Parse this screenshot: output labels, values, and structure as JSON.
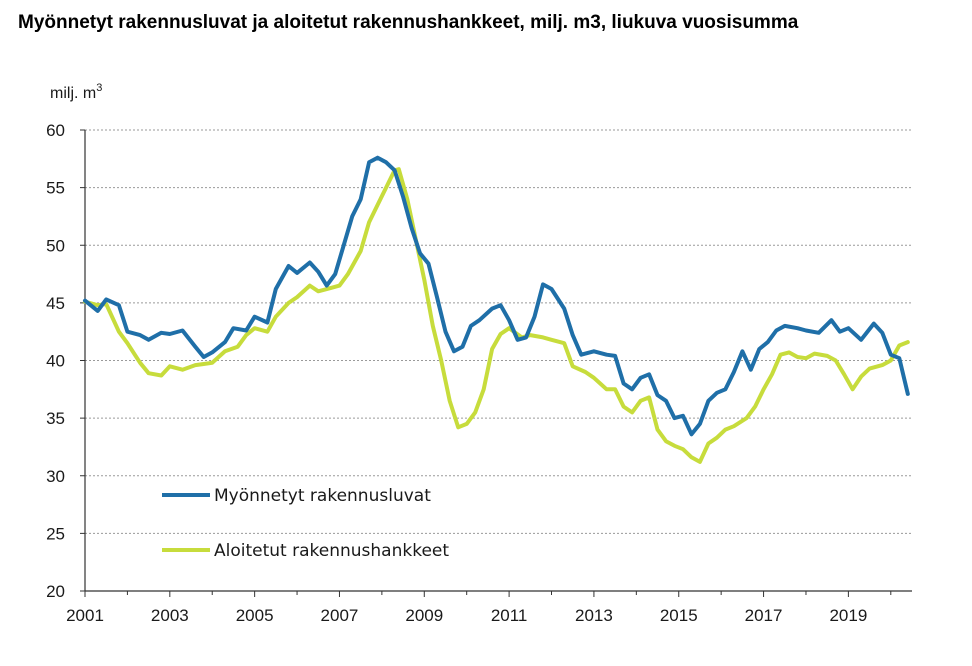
{
  "title": "Myönnetyt rakennusluvat ja aloitetut rakennushankkeet, milj. m3, liukuva vuosisumma",
  "chart_data": {
    "type": "line",
    "title": "Myönnetyt rakennusluvat ja aloitetut rakennushankkeet, milj. m3, liukuva vuosisumma",
    "ylabel": "milj. m",
    "ylabel_superscript": "3",
    "xlim": [
      2001,
      2020.5
    ],
    "ylim": [
      20,
      60
    ],
    "yticks": [
      20,
      25,
      30,
      35,
      40,
      45,
      50,
      55,
      60
    ],
    "xticks": [
      2001,
      2003,
      2005,
      2007,
      2009,
      2011,
      2013,
      2015,
      2017,
      2019
    ],
    "grid": true,
    "legend_position": "bottom-left",
    "series": [
      {
        "name": "Myönnetyt rakennusluvat",
        "color": "#1f6fa8",
        "points": [
          [
            2001.0,
            45.2
          ],
          [
            2001.3,
            44.3
          ],
          [
            2001.5,
            45.3
          ],
          [
            2001.8,
            44.8
          ],
          [
            2002.0,
            42.5
          ],
          [
            2002.3,
            42.2
          ],
          [
            2002.5,
            41.8
          ],
          [
            2002.8,
            42.4
          ],
          [
            2003.0,
            42.3
          ],
          [
            2003.3,
            42.6
          ],
          [
            2003.6,
            41.2
          ],
          [
            2003.8,
            40.3
          ],
          [
            2004.0,
            40.7
          ],
          [
            2004.3,
            41.6
          ],
          [
            2004.5,
            42.8
          ],
          [
            2004.8,
            42.6
          ],
          [
            2005.0,
            43.8
          ],
          [
            2005.3,
            43.3
          ],
          [
            2005.5,
            46.2
          ],
          [
            2005.8,
            48.2
          ],
          [
            2006.0,
            47.6
          ],
          [
            2006.3,
            48.5
          ],
          [
            2006.5,
            47.7
          ],
          [
            2006.7,
            46.5
          ],
          [
            2006.9,
            47.5
          ],
          [
            2007.1,
            50.0
          ],
          [
            2007.3,
            52.5
          ],
          [
            2007.5,
            54.0
          ],
          [
            2007.7,
            57.2
          ],
          [
            2007.9,
            57.6
          ],
          [
            2008.1,
            57.2
          ],
          [
            2008.3,
            56.5
          ],
          [
            2008.5,
            54.2
          ],
          [
            2008.7,
            51.5
          ],
          [
            2008.9,
            49.3
          ],
          [
            2009.1,
            48.4
          ],
          [
            2009.3,
            45.5
          ],
          [
            2009.5,
            42.5
          ],
          [
            2009.7,
            40.8
          ],
          [
            2009.9,
            41.2
          ],
          [
            2010.1,
            43.0
          ],
          [
            2010.3,
            43.5
          ],
          [
            2010.6,
            44.5
          ],
          [
            2010.8,
            44.8
          ],
          [
            2011.0,
            43.5
          ],
          [
            2011.2,
            41.8
          ],
          [
            2011.4,
            42.0
          ],
          [
            2011.6,
            43.8
          ],
          [
            2011.8,
            46.6
          ],
          [
            2012.0,
            46.2
          ],
          [
            2012.3,
            44.5
          ],
          [
            2012.5,
            42.2
          ],
          [
            2012.7,
            40.5
          ],
          [
            2013.0,
            40.8
          ],
          [
            2013.3,
            40.5
          ],
          [
            2013.5,
            40.4
          ],
          [
            2013.7,
            38.0
          ],
          [
            2013.9,
            37.5
          ],
          [
            2014.1,
            38.5
          ],
          [
            2014.3,
            38.8
          ],
          [
            2014.5,
            37.0
          ],
          [
            2014.7,
            36.5
          ],
          [
            2014.9,
            35.0
          ],
          [
            2015.1,
            35.2
          ],
          [
            2015.3,
            33.6
          ],
          [
            2015.5,
            34.5
          ],
          [
            2015.7,
            36.5
          ],
          [
            2015.9,
            37.2
          ],
          [
            2016.1,
            37.5
          ],
          [
            2016.3,
            39.0
          ],
          [
            2016.5,
            40.8
          ],
          [
            2016.7,
            39.2
          ],
          [
            2016.9,
            41.0
          ],
          [
            2017.1,
            41.6
          ],
          [
            2017.3,
            42.6
          ],
          [
            2017.5,
            43.0
          ],
          [
            2017.8,
            42.8
          ],
          [
            2018.0,
            42.6
          ],
          [
            2018.3,
            42.4
          ],
          [
            2018.6,
            43.5
          ],
          [
            2018.8,
            42.5
          ],
          [
            2019.0,
            42.8
          ],
          [
            2019.3,
            41.8
          ],
          [
            2019.6,
            43.2
          ],
          [
            2019.8,
            42.4
          ],
          [
            2020.0,
            40.5
          ],
          [
            2020.2,
            40.2
          ],
          [
            2020.4,
            37.1
          ]
        ]
      },
      {
        "name": "Aloitetut rakennushankkeet",
        "color": "#c7dc3c",
        "points": [
          [
            2001.0,
            45.1
          ],
          [
            2001.3,
            44.8
          ],
          [
            2001.5,
            44.9
          ],
          [
            2001.8,
            42.5
          ],
          [
            2002.0,
            41.5
          ],
          [
            2002.3,
            39.8
          ],
          [
            2002.5,
            38.9
          ],
          [
            2002.8,
            38.7
          ],
          [
            2003.0,
            39.5
          ],
          [
            2003.3,
            39.2
          ],
          [
            2003.6,
            39.6
          ],
          [
            2003.8,
            39.7
          ],
          [
            2004.0,
            39.8
          ],
          [
            2004.3,
            40.8
          ],
          [
            2004.6,
            41.2
          ],
          [
            2004.8,
            42.2
          ],
          [
            2005.0,
            42.8
          ],
          [
            2005.3,
            42.5
          ],
          [
            2005.5,
            43.8
          ],
          [
            2005.8,
            45.0
          ],
          [
            2006.0,
            45.5
          ],
          [
            2006.3,
            46.5
          ],
          [
            2006.5,
            46.0
          ],
          [
            2006.8,
            46.3
          ],
          [
            2007.0,
            46.5
          ],
          [
            2007.2,
            47.5
          ],
          [
            2007.5,
            49.5
          ],
          [
            2007.7,
            52.0
          ],
          [
            2007.9,
            53.5
          ],
          [
            2008.1,
            55.0
          ],
          [
            2008.3,
            56.5
          ],
          [
            2008.4,
            56.6
          ],
          [
            2008.6,
            54.0
          ],
          [
            2008.8,
            50.5
          ],
          [
            2009.0,
            47.0
          ],
          [
            2009.2,
            43.0
          ],
          [
            2009.4,
            40.0
          ],
          [
            2009.6,
            36.5
          ],
          [
            2009.8,
            34.2
          ],
          [
            2010.0,
            34.5
          ],
          [
            2010.2,
            35.5
          ],
          [
            2010.4,
            37.5
          ],
          [
            2010.6,
            41.0
          ],
          [
            2010.8,
            42.3
          ],
          [
            2011.0,
            42.8
          ],
          [
            2011.3,
            42.0
          ],
          [
            2011.5,
            42.2
          ],
          [
            2011.8,
            42.0
          ],
          [
            2012.0,
            41.8
          ],
          [
            2012.3,
            41.5
          ],
          [
            2012.5,
            39.5
          ],
          [
            2012.8,
            39.0
          ],
          [
            2013.0,
            38.5
          ],
          [
            2013.3,
            37.5
          ],
          [
            2013.5,
            37.5
          ],
          [
            2013.7,
            36.0
          ],
          [
            2013.9,
            35.5
          ],
          [
            2014.1,
            36.5
          ],
          [
            2014.3,
            36.8
          ],
          [
            2014.5,
            34.0
          ],
          [
            2014.7,
            33.0
          ],
          [
            2014.9,
            32.6
          ],
          [
            2015.1,
            32.3
          ],
          [
            2015.3,
            31.6
          ],
          [
            2015.5,
            31.2
          ],
          [
            2015.7,
            32.8
          ],
          [
            2015.9,
            33.3
          ],
          [
            2016.1,
            34.0
          ],
          [
            2016.3,
            34.3
          ],
          [
            2016.6,
            35.0
          ],
          [
            2016.8,
            36.0
          ],
          [
            2017.0,
            37.5
          ],
          [
            2017.2,
            38.8
          ],
          [
            2017.4,
            40.5
          ],
          [
            2017.6,
            40.7
          ],
          [
            2017.8,
            40.3
          ],
          [
            2018.0,
            40.2
          ],
          [
            2018.2,
            40.6
          ],
          [
            2018.5,
            40.4
          ],
          [
            2018.7,
            40.0
          ],
          [
            2018.9,
            38.8
          ],
          [
            2019.1,
            37.5
          ],
          [
            2019.3,
            38.6
          ],
          [
            2019.5,
            39.3
          ],
          [
            2019.8,
            39.6
          ],
          [
            2020.0,
            40.0
          ],
          [
            2020.2,
            41.3
          ],
          [
            2020.4,
            41.6
          ]
        ]
      }
    ]
  }
}
